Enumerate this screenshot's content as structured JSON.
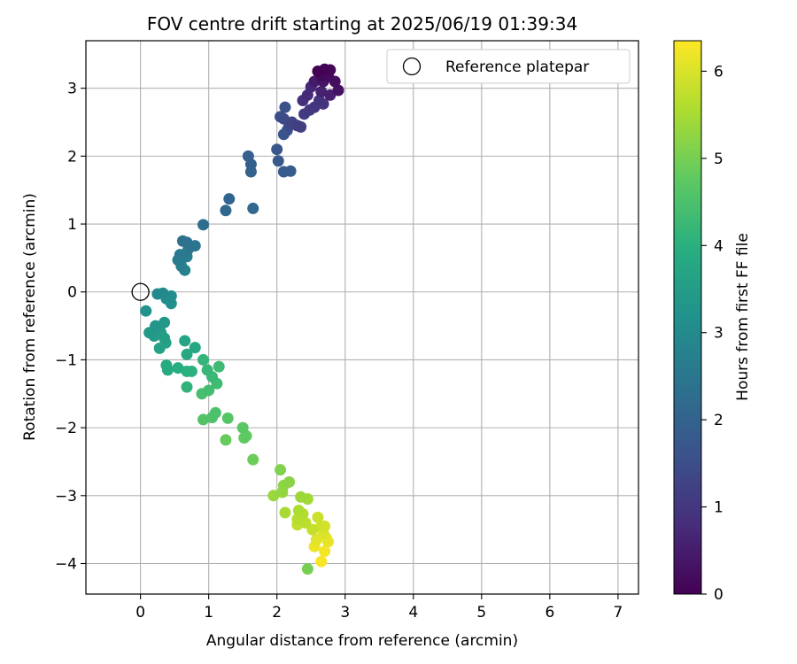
{
  "chart_data": {
    "type": "scatter",
    "title": "FOV centre drift starting at 2025/06/19 01:39:34",
    "xlabel": "Angular distance from reference (arcmin)",
    "ylabel": "Rotation from reference (arcmin)",
    "xlim": [
      -0.8,
      7.3
    ],
    "ylim": [
      -4.45,
      3.7
    ],
    "xticks": [
      0,
      1,
      2,
      3,
      4,
      5,
      6,
      7
    ],
    "yticks": [
      -4,
      -3,
      -2,
      -1,
      0,
      1,
      2,
      3
    ],
    "grid": true,
    "legend": {
      "position": "top-right",
      "entries": [
        {
          "label": "Reference platepar",
          "marker": "open-circle"
        }
      ]
    },
    "reference_point": {
      "x": 0,
      "y": 0
    },
    "colorbar": {
      "label": "Hours from first FF file",
      "colormap": "viridis",
      "range": [
        0,
        6.35
      ],
      "ticks": [
        0,
        1,
        2,
        3,
        4,
        5,
        6
      ]
    },
    "points": [
      {
        "x": 2.6,
        "y": 3.25,
        "t": 0.0
      },
      {
        "x": 2.7,
        "y": 3.28,
        "t": 0.05
      },
      {
        "x": 2.78,
        "y": 3.27,
        "t": 0.1
      },
      {
        "x": 2.65,
        "y": 3.18,
        "t": 0.15
      },
      {
        "x": 2.75,
        "y": 3.18,
        "t": 0.2
      },
      {
        "x": 2.85,
        "y": 3.1,
        "t": 0.25
      },
      {
        "x": 2.9,
        "y": 2.97,
        "t": 0.3
      },
      {
        "x": 2.68,
        "y": 3.1,
        "t": 0.35
      },
      {
        "x": 2.55,
        "y": 3.1,
        "t": 0.45
      },
      {
        "x": 2.78,
        "y": 2.9,
        "t": 0.55
      },
      {
        "x": 2.65,
        "y": 2.95,
        "t": 0.6
      },
      {
        "x": 2.5,
        "y": 3.02,
        "t": 0.7
      },
      {
        "x": 2.45,
        "y": 2.9,
        "t": 0.75
      },
      {
        "x": 2.38,
        "y": 2.82,
        "t": 0.85
      },
      {
        "x": 2.62,
        "y": 2.82,
        "t": 0.9
      },
      {
        "x": 2.68,
        "y": 2.77,
        "t": 0.95
      },
      {
        "x": 2.55,
        "y": 2.72,
        "t": 1.0
      },
      {
        "x": 2.48,
        "y": 2.68,
        "t": 1.05
      },
      {
        "x": 2.4,
        "y": 2.62,
        "t": 1.1
      },
      {
        "x": 2.3,
        "y": 2.45,
        "t": 1.15
      },
      {
        "x": 2.35,
        "y": 2.43,
        "t": 1.2
      },
      {
        "x": 2.22,
        "y": 2.5,
        "t": 1.3
      },
      {
        "x": 2.18,
        "y": 2.45,
        "t": 1.4
      },
      {
        "x": 2.1,
        "y": 2.55,
        "t": 1.45
      },
      {
        "x": 2.05,
        "y": 2.58,
        "t": 1.5
      },
      {
        "x": 2.12,
        "y": 2.72,
        "t": 1.55
      },
      {
        "x": 2.15,
        "y": 2.38,
        "t": 1.6
      },
      {
        "x": 2.1,
        "y": 2.32,
        "t": 1.65
      },
      {
        "x": 2.0,
        "y": 2.1,
        "t": 1.7
      },
      {
        "x": 2.02,
        "y": 1.93,
        "t": 1.75
      },
      {
        "x": 2.1,
        "y": 1.77,
        "t": 1.8
      },
      {
        "x": 2.2,
        "y": 1.78,
        "t": 1.85
      },
      {
        "x": 1.58,
        "y": 2.0,
        "t": 1.9
      },
      {
        "x": 1.62,
        "y": 1.88,
        "t": 1.95
      },
      {
        "x": 1.62,
        "y": 1.77,
        "t": 2.0
      },
      {
        "x": 1.3,
        "y": 1.37,
        "t": 2.05
      },
      {
        "x": 1.25,
        "y": 1.2,
        "t": 2.1
      },
      {
        "x": 1.65,
        "y": 1.23,
        "t": 2.15
      },
      {
        "x": 0.92,
        "y": 0.99,
        "t": 2.25
      },
      {
        "x": 0.62,
        "y": 0.75,
        "t": 2.35
      },
      {
        "x": 0.68,
        "y": 0.73,
        "t": 2.4
      },
      {
        "x": 0.8,
        "y": 0.68,
        "t": 2.45
      },
      {
        "x": 0.7,
        "y": 0.63,
        "t": 2.5
      },
      {
        "x": 0.58,
        "y": 0.55,
        "t": 2.55
      },
      {
        "x": 0.55,
        "y": 0.47,
        "t": 2.6
      },
      {
        "x": 0.68,
        "y": 0.52,
        "t": 2.65
      },
      {
        "x": 0.6,
        "y": 0.38,
        "t": 2.7
      },
      {
        "x": 0.65,
        "y": 0.32,
        "t": 2.8
      },
      {
        "x": 0.25,
        "y": -0.03,
        "t": 2.95
      },
      {
        "x": 0.33,
        "y": -0.02,
        "t": 3.0
      },
      {
        "x": 0.45,
        "y": -0.06,
        "t": 3.05
      },
      {
        "x": 0.38,
        "y": -0.1,
        "t": 3.1
      },
      {
        "x": 0.45,
        "y": -0.17,
        "t": 3.15
      },
      {
        "x": 0.08,
        "y": -0.28,
        "t": 3.2
      },
      {
        "x": 0.22,
        "y": -0.5,
        "t": 3.3
      },
      {
        "x": 0.35,
        "y": -0.45,
        "t": 3.35
      },
      {
        "x": 0.13,
        "y": -0.6,
        "t": 3.4
      },
      {
        "x": 0.2,
        "y": -0.65,
        "t": 3.45
      },
      {
        "x": 0.3,
        "y": -0.6,
        "t": 3.5
      },
      {
        "x": 0.35,
        "y": -0.68,
        "t": 3.55
      },
      {
        "x": 0.37,
        "y": -0.75,
        "t": 3.6
      },
      {
        "x": 0.28,
        "y": -0.83,
        "t": 3.65
      },
      {
        "x": 0.65,
        "y": -0.72,
        "t": 3.7
      },
      {
        "x": 0.8,
        "y": -0.82,
        "t": 3.75
      },
      {
        "x": 0.68,
        "y": -0.92,
        "t": 3.8
      },
      {
        "x": 0.38,
        "y": -1.08,
        "t": 3.85
      },
      {
        "x": 0.4,
        "y": -1.15,
        "t": 3.9
      },
      {
        "x": 0.55,
        "y": -1.12,
        "t": 3.95
      },
      {
        "x": 0.68,
        "y": -1.17,
        "t": 4.0
      },
      {
        "x": 0.75,
        "y": -1.17,
        "t": 4.05
      },
      {
        "x": 0.68,
        "y": -1.4,
        "t": 4.1
      },
      {
        "x": 0.92,
        "y": -1.0,
        "t": 4.15
      },
      {
        "x": 0.98,
        "y": -1.15,
        "t": 4.2
      },
      {
        "x": 1.05,
        "y": -1.25,
        "t": 4.25
      },
      {
        "x": 1.15,
        "y": -1.1,
        "t": 4.3
      },
      {
        "x": 1.12,
        "y": -1.35,
        "t": 4.35
      },
      {
        "x": 1.0,
        "y": -1.45,
        "t": 4.4
      },
      {
        "x": 0.9,
        "y": -1.5,
        "t": 4.45
      },
      {
        "x": 1.1,
        "y": -1.78,
        "t": 4.5
      },
      {
        "x": 1.05,
        "y": -1.85,
        "t": 4.55
      },
      {
        "x": 0.92,
        "y": -1.88,
        "t": 4.6
      },
      {
        "x": 1.28,
        "y": -1.86,
        "t": 4.65
      },
      {
        "x": 1.5,
        "y": -2.0,
        "t": 4.7
      },
      {
        "x": 1.55,
        "y": -2.12,
        "t": 4.75
      },
      {
        "x": 1.52,
        "y": -2.15,
        "t": 4.8
      },
      {
        "x": 1.25,
        "y": -2.18,
        "t": 4.85
      },
      {
        "x": 1.65,
        "y": -2.47,
        "t": 4.9
      },
      {
        "x": 2.05,
        "y": -2.62,
        "t": 5.1
      },
      {
        "x": 2.18,
        "y": -2.8,
        "t": 5.2
      },
      {
        "x": 2.1,
        "y": -2.85,
        "t": 5.25
      },
      {
        "x": 2.08,
        "y": -2.95,
        "t": 5.3
      },
      {
        "x": 1.95,
        "y": -3.0,
        "t": 5.35
      },
      {
        "x": 2.35,
        "y": -3.02,
        "t": 5.4
      },
      {
        "x": 2.45,
        "y": -3.05,
        "t": 5.45
      },
      {
        "x": 2.12,
        "y": -3.25,
        "t": 5.5
      },
      {
        "x": 2.32,
        "y": -3.22,
        "t": 5.55
      },
      {
        "x": 2.38,
        "y": -3.27,
        "t": 5.6
      },
      {
        "x": 2.3,
        "y": -3.35,
        "t": 5.65
      },
      {
        "x": 2.42,
        "y": -3.4,
        "t": 5.7
      },
      {
        "x": 2.3,
        "y": -3.43,
        "t": 5.75
      },
      {
        "x": 2.52,
        "y": -3.5,
        "t": 5.8
      },
      {
        "x": 2.6,
        "y": -3.32,
        "t": 5.85
      },
      {
        "x": 2.65,
        "y": -3.45,
        "t": 5.9
      },
      {
        "x": 2.7,
        "y": -3.45,
        "t": 5.95
      },
      {
        "x": 2.68,
        "y": -3.55,
        "t": 6.0
      },
      {
        "x": 2.58,
        "y": -3.65,
        "t": 6.05
      },
      {
        "x": 2.72,
        "y": -3.62,
        "t": 6.1
      },
      {
        "x": 2.75,
        "y": -3.68,
        "t": 6.15
      },
      {
        "x": 2.55,
        "y": -3.75,
        "t": 6.2
      },
      {
        "x": 2.7,
        "y": -3.82,
        "t": 6.25
      },
      {
        "x": 2.65,
        "y": -3.97,
        "t": 6.3
      },
      {
        "x": 2.45,
        "y": -4.08,
        "t": 5.0
      }
    ]
  }
}
